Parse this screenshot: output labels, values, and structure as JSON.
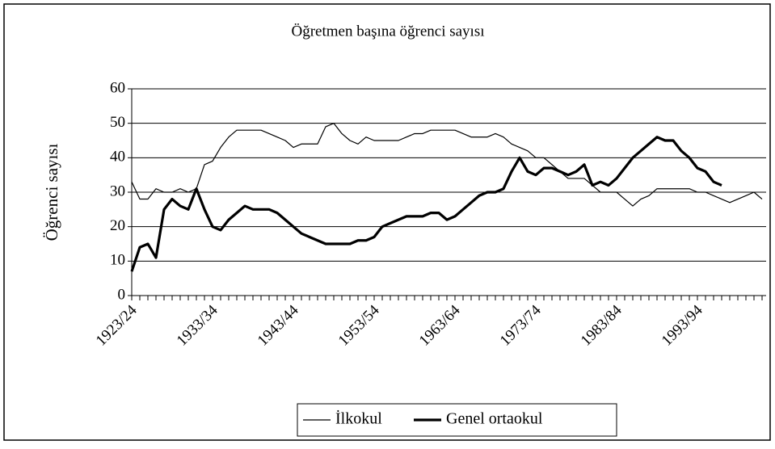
{
  "chart_data": {
    "type": "line",
    "title": "Öğretmen başına öğrenci sayısı",
    "y_label": "Öğrenci sayısı",
    "categories": [
      "1923/24",
      null,
      null,
      null,
      null,
      null,
      null,
      null,
      null,
      null,
      "1933/34",
      null,
      null,
      null,
      null,
      null,
      null,
      null,
      null,
      null,
      "1943/44",
      null,
      null,
      null,
      null,
      null,
      null,
      null,
      null,
      null,
      "1953/54",
      null,
      null,
      null,
      null,
      null,
      null,
      null,
      null,
      null,
      "1963/64",
      null,
      null,
      null,
      null,
      null,
      null,
      null,
      null,
      null,
      "1973/74",
      null,
      null,
      null,
      null,
      null,
      null,
      null,
      null,
      null,
      "1983/84",
      null,
      null,
      null,
      null,
      null,
      null,
      null,
      null,
      null,
      "1993/94",
      null,
      null,
      null,
      null,
      null,
      null,
      null,
      null
    ],
    "series": [
      {
        "name": "İlkokul",
        "color": "#000000",
        "values": [
          33,
          28,
          28,
          31,
          30,
          30,
          31,
          30,
          31,
          38,
          39,
          43,
          46,
          48,
          48,
          48,
          48,
          47,
          46,
          45,
          43,
          44,
          44,
          44,
          49,
          50,
          47,
          45,
          44,
          46,
          45,
          45,
          45,
          45,
          46,
          47,
          47,
          48,
          48,
          48,
          48,
          47,
          46,
          46,
          46,
          47,
          46,
          44,
          43,
          42,
          40,
          40,
          38,
          36,
          34,
          34,
          34,
          32,
          30,
          30,
          30,
          28,
          26,
          28,
          29,
          31,
          31,
          31,
          31,
          31,
          30,
          30,
          29,
          28,
          27,
          28,
          29,
          30,
          28
        ]
      },
      {
        "name": "Genel ortaokul",
        "color": "#000000",
        "values": [
          7,
          14,
          15,
          11,
          25,
          28,
          26,
          25,
          31,
          25,
          20,
          19,
          22,
          24,
          26,
          25,
          25,
          25,
          24,
          22,
          20,
          18,
          17,
          16,
          15,
          15,
          15,
          15,
          16,
          16,
          17,
          20,
          21,
          22,
          23,
          23,
          23,
          24,
          24,
          22,
          23,
          25,
          27,
          29,
          30,
          30,
          31,
          36,
          40,
          36,
          35,
          37,
          37,
          36,
          35,
          36,
          38,
          32,
          33,
          32,
          34,
          37,
          40,
          42,
          44,
          46,
          45,
          45,
          42,
          40,
          37,
          36,
          33,
          32,
          null,
          null,
          null,
          null,
          null
        ]
      }
    ],
    "ylim": [
      0,
      60
    ],
    "yticks": [
      0,
      10,
      20,
      30,
      40,
      50,
      60
    ],
    "grid": true,
    "legend": "bottom"
  }
}
